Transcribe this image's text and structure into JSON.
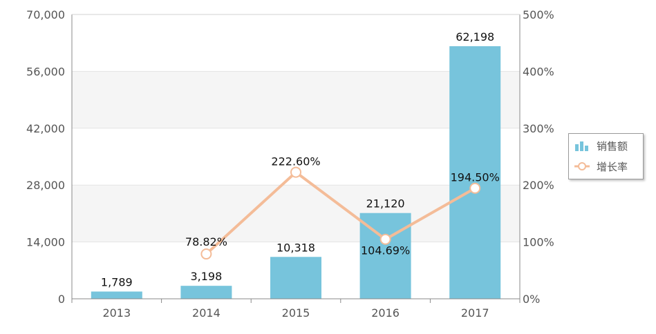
{
  "chart_data": {
    "type": "bar",
    "categories": [
      "2013",
      "2014",
      "2015",
      "2016",
      "2017"
    ],
    "series": [
      {
        "name": "销售额",
        "type": "bar",
        "axis": "left",
        "values": [
          1789,
          3198,
          10318,
          21120,
          62198
        ],
        "labels": [
          "1,789",
          "3,198",
          "10,318",
          "21,120",
          "62,198"
        ],
        "color": "#77C4DC"
      },
      {
        "name": "增长率",
        "type": "line",
        "axis": "right",
        "values": [
          null,
          78.82,
          222.6,
          104.69,
          194.5
        ],
        "labels": [
          "",
          "78.82%",
          "222.60%",
          "104.69%",
          "194.50%"
        ],
        "color": "#F4BC98"
      }
    ],
    "y_left": {
      "ylim": [
        0,
        70000
      ],
      "tick_labels": [
        "0",
        "14,000",
        "28,000",
        "42,000",
        "56,000",
        "70,000"
      ]
    },
    "y_right": {
      "ylim": [
        0,
        500
      ],
      "tick_labels": [
        "0%",
        "100%",
        "200%",
        "300%",
        "400%",
        "500%"
      ]
    },
    "grid": true,
    "legend_position": "right"
  }
}
